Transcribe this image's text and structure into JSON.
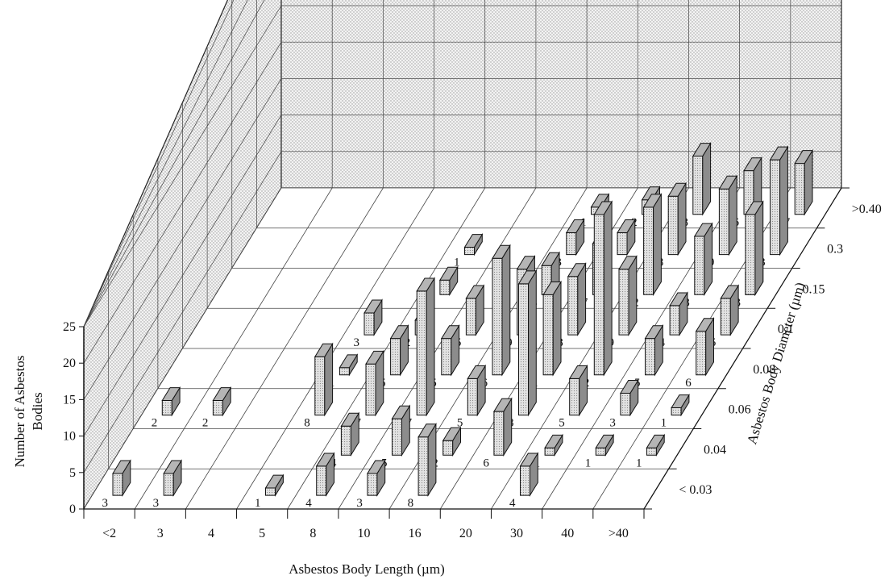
{
  "chart_data": {
    "type": "bar3d",
    "title": "",
    "z_label_lines": [
      "Number of Asbestos",
      "Bodies"
    ],
    "z_ticks": [
      "0",
      "5",
      "10",
      "15",
      "20",
      "25"
    ],
    "zlim": [
      0,
      25
    ],
    "x_label": "Asbestos Body Length (µm)",
    "x_categories": [
      "<2",
      "3",
      "4",
      "5",
      "8",
      "10",
      "16",
      "20",
      "30",
      "40",
      ">40"
    ],
    "y_label": "Asbestos Body Diameter (µm)",
    "y_categories": [
      "< 0.03",
      "0.04",
      "0.06",
      "0.08",
      "0.1",
      "0.15",
      "0.3",
      ">0.40"
    ],
    "grid": true,
    "bars": [
      {
        "length": "<2",
        "diameter": "< 0.03",
        "value": 3
      },
      {
        "length": "3",
        "diameter": "< 0.03",
        "value": 3
      },
      {
        "length": "5",
        "diameter": "< 0.03",
        "value": 1
      },
      {
        "length": "8",
        "diameter": "< 0.03",
        "value": 4
      },
      {
        "length": "10",
        "diameter": "< 0.03",
        "value": 3
      },
      {
        "length": "16",
        "diameter": "< 0.03",
        "value": 8
      },
      {
        "length": "30",
        "diameter": "< 0.03",
        "value": 4
      },
      {
        "length": "8",
        "diameter": "0.04",
        "value": 4
      },
      {
        "length": "10",
        "diameter": "0.04",
        "value": 5
      },
      {
        "length": "16",
        "diameter": "0.04",
        "value": 2
      },
      {
        "length": "20",
        "diameter": "0.04",
        "value": 6
      },
      {
        "length": "30",
        "diameter": "0.04",
        "value": 1
      },
      {
        "length": "40",
        "diameter": "0.04",
        "value": 1
      },
      {
        "length": ">40",
        "diameter": "0.04",
        "value": 1
      },
      {
        "length": "<2",
        "diameter": "0.06",
        "value": 2
      },
      {
        "length": "3",
        "diameter": "0.06",
        "value": 2
      },
      {
        "length": "5",
        "diameter": "0.06",
        "value": 8
      },
      {
        "length": "8",
        "diameter": "0.06",
        "value": 7
      },
      {
        "length": "10",
        "diameter": "0.06",
        "value": 17
      },
      {
        "length": "16",
        "diameter": "0.06",
        "value": 5
      },
      {
        "length": "20",
        "diameter": "0.06",
        "value": 18
      },
      {
        "length": "30",
        "diameter": "0.06",
        "value": 5
      },
      {
        "length": "40",
        "diameter": "0.06",
        "value": 3
      },
      {
        "length": ">40",
        "diameter": "0.06",
        "value": 1
      },
      {
        "length": "5",
        "diameter": "0.08",
        "value": 1
      },
      {
        "length": "8",
        "diameter": "0.08",
        "value": 5
      },
      {
        "length": "10",
        "diameter": "0.08",
        "value": 5
      },
      {
        "length": "16",
        "diameter": "0.08",
        "value": 16
      },
      {
        "length": "20",
        "diameter": "0.08",
        "value": 11
      },
      {
        "length": "30",
        "diameter": "0.08",
        "value": 22
      },
      {
        "length": "40",
        "diameter": "0.08",
        "value": 5
      },
      {
        "length": ">40",
        "diameter": "0.08",
        "value": 6
      },
      {
        "length": "5",
        "diameter": "0.1",
        "value": 3
      },
      {
        "length": "8",
        "diameter": "0.1",
        "value": 2
      },
      {
        "length": "10",
        "diameter": "0.1",
        "value": 5
      },
      {
        "length": "16",
        "diameter": "0.1",
        "value": 9
      },
      {
        "length": "20",
        "diameter": "0.1",
        "value": 8
      },
      {
        "length": "30",
        "diameter": "0.1",
        "value": 9
      },
      {
        "length": "40",
        "diameter": "0.1",
        "value": 4
      },
      {
        "length": ">40",
        "diameter": "0.1",
        "value": 5
      },
      {
        "length": ">40",
        "diameter": "0.15",
        "value": 3
      },
      {
        "length": "8",
        "diameter": "0.15",
        "value": 2
      },
      {
        "length": "16",
        "diameter": "0.15",
        "value": 4
      },
      {
        "length": "20",
        "diameter": "0.15",
        "value": 7
      },
      {
        "length": "30",
        "diameter": "0.15",
        "value": 12
      },
      {
        "length": "40",
        "diameter": "0.15",
        "value": 8
      },
      {
        "length": ">40",
        "diameter": "0.15",
        "value": 11
      },
      {
        "length": "8",
        "diameter": "0.3",
        "value": 1
      },
      {
        "length": "16",
        "diameter": "0.3",
        "value": 3
      },
      {
        "length": "20",
        "diameter": "0.3",
        "value": 3
      },
      {
        "length": "30",
        "diameter": "0.3",
        "value": 8
      },
      {
        "length": "40",
        "diameter": "0.3",
        "value": 9
      },
      {
        "length": ">40",
        "diameter": "0.3",
        "value": 13
      },
      {
        "length": "16",
        "diameter": ">0.40",
        "value": 1
      },
      {
        "length": "20",
        "diameter": ">0.40",
        "value": 2
      },
      {
        "length": "30",
        "diameter": ">0.40",
        "value": 8
      },
      {
        "length": "40",
        "diameter": ">0.40",
        "value": 6
      },
      {
        "length": ">40",
        "diameter": ">0.40",
        "value": 7
      }
    ]
  }
}
